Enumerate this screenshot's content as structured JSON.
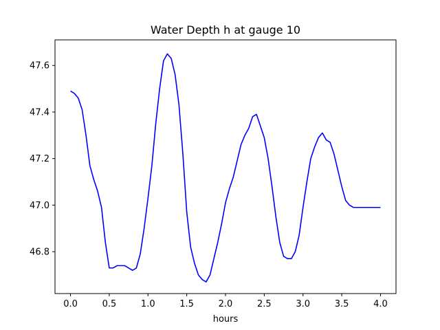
{
  "chart_data": {
    "type": "line",
    "title": "Water Depth h at gauge 10",
    "xlabel": "hours",
    "ylabel": "",
    "xlim": [
      -0.2,
      4.2
    ],
    "ylim": [
      46.62,
      47.71
    ],
    "xticks": [
      "0.0",
      "0.5",
      "1.0",
      "1.5",
      "2.0",
      "2.5",
      "3.0",
      "3.5",
      "4.0"
    ],
    "yticks": [
      "46.8",
      "47.0",
      "47.2",
      "47.4",
      "47.6"
    ],
    "grid": false,
    "legend": "none",
    "colors": {
      "line": "#0000ff",
      "axes": "#000000",
      "background": "#ffffff"
    },
    "series": [
      {
        "x": [
          0.0,
          0.05,
          0.1,
          0.15,
          0.2,
          0.25,
          0.3,
          0.35,
          0.4,
          0.45,
          0.5,
          0.55,
          0.6,
          0.65,
          0.7,
          0.75,
          0.8,
          0.85,
          0.9,
          0.95,
          1.0,
          1.05,
          1.1,
          1.15,
          1.2,
          1.25,
          1.3,
          1.35,
          1.4,
          1.45,
          1.5,
          1.55,
          1.6,
          1.65,
          1.7,
          1.75,
          1.8,
          1.85,
          1.9,
          1.95,
          2.0,
          2.05,
          2.1,
          2.15,
          2.2,
          2.25,
          2.3,
          2.35,
          2.4,
          2.45,
          2.5,
          2.55,
          2.6,
          2.65,
          2.7,
          2.75,
          2.8,
          2.85,
          2.9,
          2.95,
          3.0,
          3.05,
          3.1,
          3.15,
          3.2,
          3.25,
          3.3,
          3.35,
          3.4,
          3.45,
          3.5,
          3.55,
          3.6,
          3.65,
          3.7,
          3.75,
          3.8,
          3.85,
          3.9,
          3.95,
          4.0
        ],
        "values": [
          47.49,
          47.48,
          47.46,
          47.41,
          47.3,
          47.17,
          47.11,
          47.06,
          46.99,
          46.84,
          46.73,
          46.73,
          46.74,
          46.74,
          46.74,
          46.73,
          46.72,
          46.73,
          46.79,
          46.9,
          47.03,
          47.17,
          47.35,
          47.5,
          47.62,
          47.65,
          47.63,
          47.56,
          47.43,
          47.22,
          46.97,
          46.82,
          46.75,
          46.7,
          46.68,
          46.67,
          46.7,
          46.77,
          46.84,
          46.92,
          47.01,
          47.07,
          47.12,
          47.19,
          47.26,
          47.3,
          47.33,
          47.38,
          47.39,
          47.34,
          47.29,
          47.2,
          47.08,
          46.95,
          46.84,
          46.78,
          46.77,
          46.77,
          46.8,
          46.87,
          46.99,
          47.1,
          47.2,
          47.25,
          47.29,
          47.31,
          47.28,
          47.27,
          47.22,
          47.15,
          47.08,
          47.02,
          47.0,
          46.99,
          46.99,
          46.99,
          46.99,
          46.99,
          46.99,
          46.99,
          46.99
        ]
      }
    ]
  }
}
